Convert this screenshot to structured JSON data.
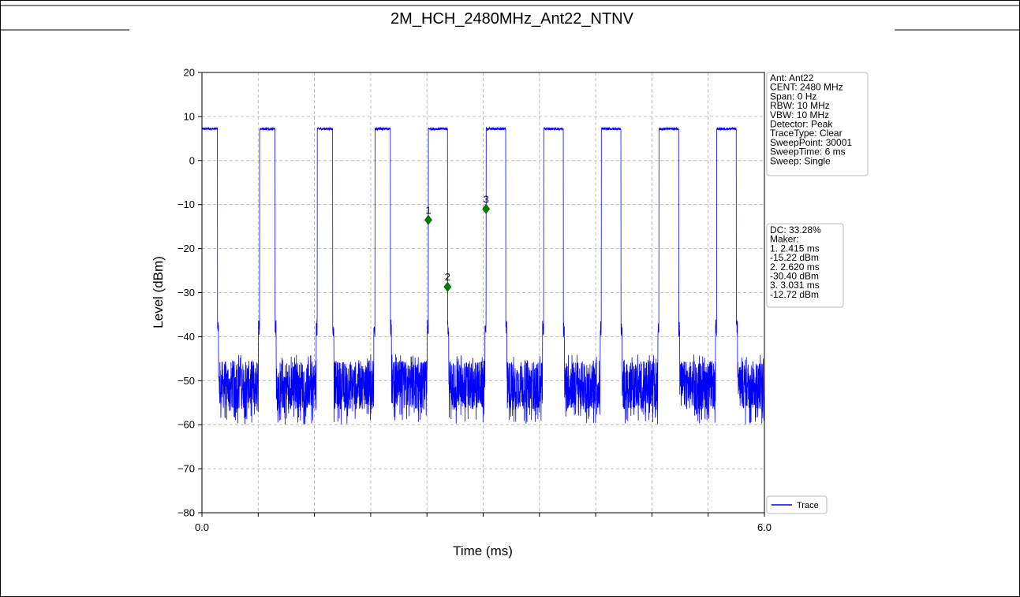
{
  "chart_data": {
    "type": "line",
    "title": "2M_HCH_2480MHz_Ant22_NTNV",
    "xlabel": "Time (ms)",
    "ylabel": "Level (dBm)",
    "xlim": [
      0,
      6
    ],
    "ylim": [
      -80,
      20
    ],
    "x_tick_labels": [
      {
        "value": 0,
        "label": "0.0"
      },
      {
        "value": 6,
        "label": "6.0"
      }
    ],
    "x_minor_ticks": [
      0.6,
      1.2,
      1.8,
      2.4,
      3.0,
      3.6,
      4.2,
      4.8,
      5.4
    ],
    "y_ticks": [
      20,
      10,
      0,
      -10,
      -20,
      -30,
      -40,
      -50,
      -60,
      -70,
      -80
    ],
    "y_tick_labels": [
      "20",
      "10",
      "0",
      "−10",
      "−20",
      "−30",
      "−40",
      "−50",
      "−60",
      "−70",
      "−80"
    ],
    "grid": true,
    "series": [
      {
        "name": "Trace",
        "color": "#0000ff",
        "on_level": 7.2,
        "off_level": -51,
        "off_min": -60,
        "off_max": -44,
        "bursts": [
          [
            0.0,
            0.165
          ],
          [
            0.615,
            0.78
          ],
          [
            1.23,
            1.395
          ],
          [
            1.845,
            2.01
          ],
          [
            2.415,
            2.62
          ],
          [
            3.031,
            3.24
          ],
          [
            3.645,
            3.855
          ],
          [
            4.26,
            4.47
          ],
          [
            4.875,
            5.085
          ],
          [
            5.49,
            5.7
          ]
        ]
      }
    ],
    "markers": [
      {
        "label": "1",
        "x": 2.415,
        "y": -13.5
      },
      {
        "label": "2",
        "x": 2.62,
        "y": -28.7
      },
      {
        "label": "3",
        "x": 3.031,
        "y": -11.0
      }
    ],
    "marker_color": "#008000",
    "legend_position": "bottom-right",
    "legend_label": "Trace",
    "info_box": [
      "Ant: Ant22",
      "CENT: 2480 MHz",
      "Span: 0 Hz",
      "RBW: 10 MHz",
      "VBW: 10 MHz",
      "Detector: Peak",
      "TraceType: Clear",
      "SweepPoint: 30001",
      "SweepTime: 6 ms",
      "Sweep: Single"
    ],
    "marker_box": [
      "DC: 33.28%",
      "Maker:",
      "1. 2.415 ms",
      "    -15.22 dBm",
      "2. 2.620 ms",
      "    -30.40 dBm",
      "3. 3.031 ms",
      "    -12.72 dBm"
    ]
  }
}
